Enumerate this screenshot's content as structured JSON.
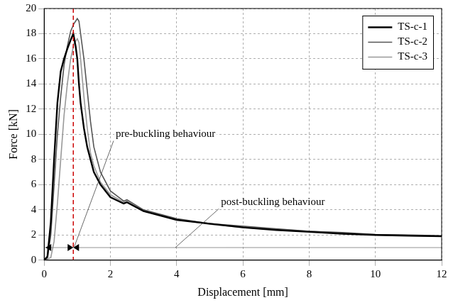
{
  "chart_data": {
    "type": "line",
    "x_label": "Displacement [mm]",
    "y_label": "Force [kN]",
    "series": [
      {
        "name": "TS-c-1",
        "color": "#000000",
        "x": [
          0,
          0.1,
          0.2,
          0.3,
          0.4,
          0.5,
          0.6,
          0.7,
          0.8,
          0.88,
          0.95,
          1.0,
          1.05,
          1.1,
          1.2,
          1.3,
          1.4,
          1.5,
          1.7,
          2.0,
          2.4,
          2.5,
          3,
          4,
          5,
          6,
          7,
          8,
          9,
          10,
          11,
          12
        ],
        "values": [
          0,
          0.3,
          3,
          8,
          12.5,
          15,
          16,
          16.8,
          17.5,
          18,
          17,
          16,
          14,
          12.5,
          10.5,
          9,
          8,
          7,
          6,
          5,
          4.5,
          4.6,
          3.9,
          3.2,
          2.9,
          2.6,
          2.4,
          2.25,
          2.1,
          2.0,
          1.95,
          1.9
        ]
      },
      {
        "name": "TS-c-2",
        "color": "#555555",
        "x": [
          0,
          0.1,
          0.2,
          0.3,
          0.4,
          0.5,
          0.6,
          0.7,
          0.8,
          0.9,
          1.0,
          1.05,
          1.1,
          1.2,
          1.3,
          1.4,
          1.5,
          1.7,
          2.0,
          2.4,
          2.5,
          3,
          4,
          5,
          6,
          7,
          8,
          9,
          10,
          11,
          12
        ],
        "values": [
          0,
          0.2,
          2,
          6,
          10,
          13,
          15.5,
          17,
          18.2,
          18.8,
          19.2,
          19,
          18,
          16,
          13.5,
          11,
          9,
          7,
          5.5,
          4.7,
          4.8,
          4,
          3.3,
          2.9,
          2.7,
          2.5,
          2.3,
          2.2,
          2.05,
          2.0,
          1.95
        ]
      },
      {
        "name": "TS-c-3",
        "color": "#999999",
        "x": [
          0,
          0.2,
          0.3,
          0.4,
          0.5,
          0.6,
          0.7,
          0.8,
          0.9,
          1.0,
          1.05,
          1.1,
          1.2,
          1.3,
          1.4,
          1.5,
          1.7,
          2.0,
          2.4,
          2.5,
          3,
          4,
          5,
          6,
          7,
          8,
          9,
          10,
          11,
          12
        ],
        "values": [
          0,
          0.2,
          1.5,
          4.5,
          8,
          11.5,
          14,
          16,
          17.2,
          17.6,
          17.3,
          16,
          13,
          10.5,
          8.5,
          7.5,
          6.2,
          5.2,
          4.6,
          4.7,
          3.9,
          3.25,
          2.85,
          2.6,
          2.45,
          2.3,
          2.15,
          2.0,
          1.95,
          1.9
        ]
      }
    ],
    "xlim": [
      0,
      12
    ],
    "xticks": [
      0,
      2,
      4,
      6,
      8,
      10,
      12
    ],
    "ylim": [
      0,
      20
    ],
    "yticks": [
      0,
      2,
      4,
      6,
      8,
      10,
      12,
      14,
      16,
      18,
      20
    ],
    "grid": true,
    "legend": "upper right",
    "annotations": [
      "pre-buckling behaviour",
      "post-buckling behaviour"
    ],
    "reference_line": {
      "x": 0.88,
      "color": "#cc0000",
      "line_style": "dashed"
    }
  }
}
